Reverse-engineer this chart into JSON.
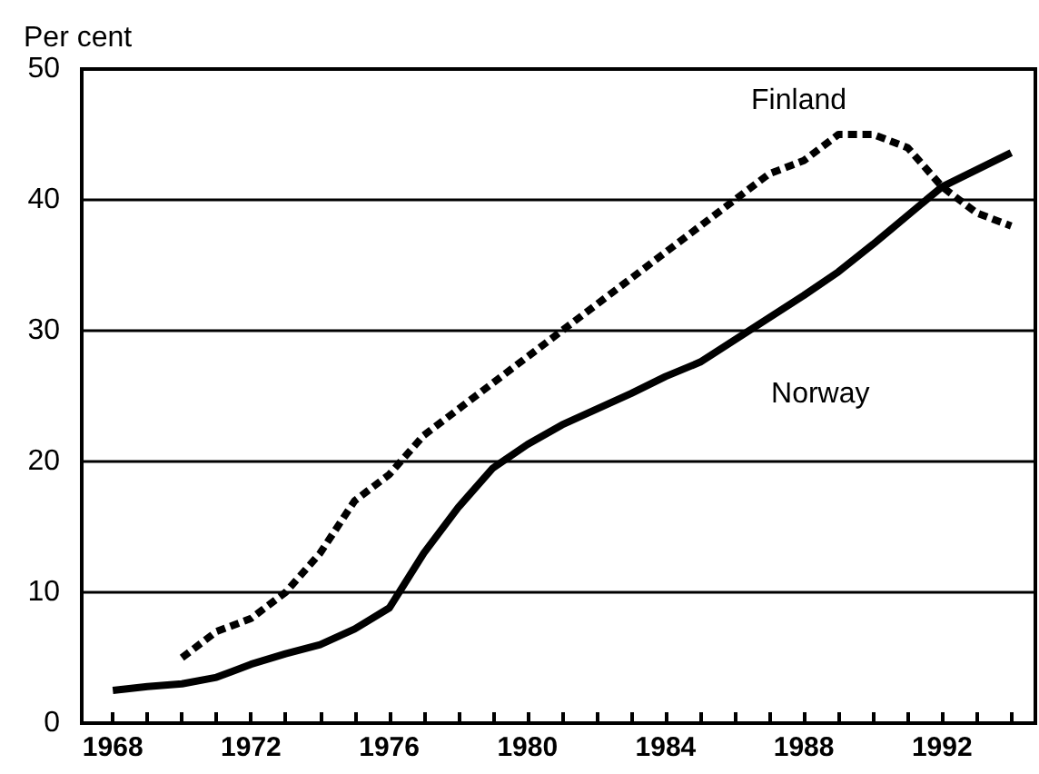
{
  "chart_data": {
    "type": "line",
    "ylabel": "Per cent",
    "xlim": [
      1967.1,
      1994.7
    ],
    "ylim": [
      0,
      50
    ],
    "yticks": [
      0,
      10,
      20,
      30,
      40,
      50
    ],
    "xticks": [
      1968,
      {
        "value": 1969,
        "label": null
      },
      {
        "value": 1970,
        "label": null
      },
      {
        "value": 1971,
        "label": null
      },
      1972,
      {
        "value": 1973,
        "label": null
      },
      {
        "value": 1974,
        "label": null
      },
      {
        "value": 1975,
        "label": null
      },
      1976,
      {
        "value": 1977,
        "label": null
      },
      {
        "value": 1978,
        "label": null
      },
      {
        "value": 1979,
        "label": null
      },
      1980,
      {
        "value": 1981,
        "label": null
      },
      {
        "value": 1982,
        "label": null
      },
      {
        "value": 1983,
        "label": null
      },
      1984,
      {
        "value": 1985,
        "label": null
      },
      {
        "value": 1986,
        "label": null
      },
      {
        "value": 1987,
        "label": null
      },
      1988,
      {
        "value": 1989,
        "label": null
      },
      {
        "value": 1990,
        "label": null
      },
      {
        "value": 1991,
        "label": null
      },
      1992,
      {
        "value": 1993,
        "label": null
      },
      {
        "value": 1994,
        "label": null
      }
    ],
    "grid": "y",
    "legend": false,
    "marker": "none",
    "series": [
      {
        "name": "Finland",
        "color": "#000000",
        "line_style": "dashed",
        "x": [
          1970,
          1971,
          1972,
          1973,
          1974,
          1975,
          1976,
          1977,
          1978,
          1979,
          1980,
          1981,
          1982,
          1983,
          1984,
          1985,
          1986,
          1987,
          1988,
          1989,
          1990,
          1991,
          1992,
          1993,
          1994
        ],
        "values": [
          5,
          7,
          8,
          10,
          13,
          17,
          19,
          22,
          24,
          26,
          28,
          30,
          32,
          34,
          36,
          38,
          40,
          42,
          43,
          45,
          45,
          44,
          41,
          39,
          38
        ]
      },
      {
        "name": "Norway",
        "color": "#000000",
        "line_style": "solid",
        "x": [
          1968,
          1969,
          1970,
          1971,
          1972,
          1973,
          1974,
          1975,
          1976,
          1977,
          1978,
          1979,
          1980,
          1981,
          1982,
          1983,
          1984,
          1985,
          1986,
          1987,
          1988,
          1989,
          1990,
          1991,
          1992,
          1993,
          1994
        ],
        "values": [
          2.5,
          2.8,
          3,
          3.5,
          4.5,
          5.3,
          6,
          7.2,
          8.8,
          13,
          16.5,
          19.5,
          21.3,
          22.8,
          24,
          25.2,
          26.5,
          27.6,
          29.3,
          31,
          32.7,
          34.5,
          36.6,
          38.8,
          41,
          42.3,
          43.6
        ]
      }
    ]
  }
}
